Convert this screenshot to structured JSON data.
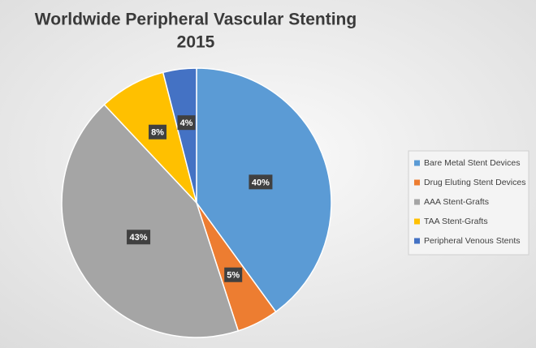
{
  "chart_data": {
    "type": "pie",
    "title": "Worldwide Peripheral Vascular Stenting",
    "subtitle": "2015",
    "categories": [
      "Bare Metal Stent Devices",
      "Drug Eluting Stent Devices",
      "AAA Stent-Grafts",
      "TAA Stent-Grafts",
      "Peripheral Venous Stents"
    ],
    "values": [
      40,
      5,
      43,
      8,
      4
    ],
    "value_labels": [
      "40%",
      "5%",
      "43%",
      "8%",
      "4%"
    ],
    "colors": [
      "#5b9bd5",
      "#ed7d31",
      "#a5a5a5",
      "#ffc000",
      "#4472c4"
    ],
    "legend": "right"
  }
}
